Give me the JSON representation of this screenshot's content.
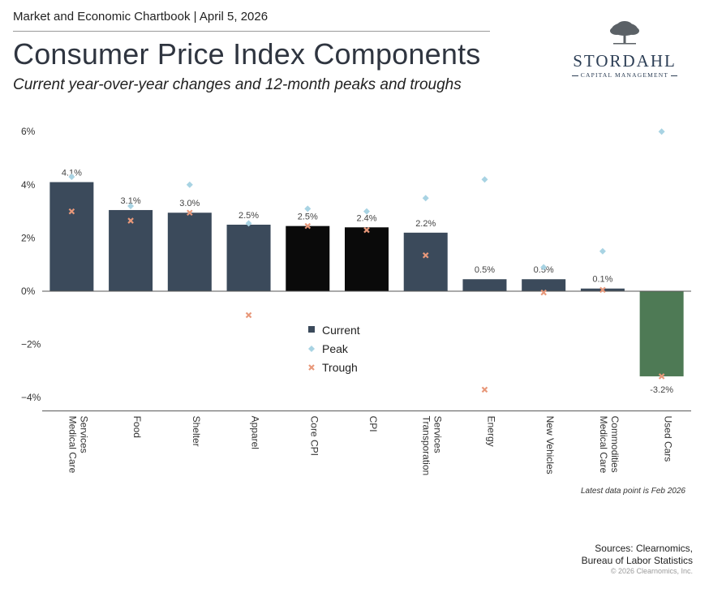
{
  "header": {
    "chartbook_line": "Market and Economic Chartbook | April 5, 2026",
    "title": "Consumer Price Index Components",
    "subtitle": "Current year-over-year changes and 12-month peaks and troughs"
  },
  "logo": {
    "name": "STORDAHL",
    "tagline": "CAPITAL MANAGEMENT",
    "icon": "tree-icon"
  },
  "colors": {
    "bar_default": "#3b4a5b",
    "bar_highlight": "#0a0a0a",
    "bar_negative": "#4e7a55",
    "peak": "#a8d3e3",
    "trough": "#e8987a",
    "axis": "#555555"
  },
  "chart_data": {
    "type": "bar",
    "title": "Consumer Price Index Components",
    "xlabel": "",
    "ylabel": "",
    "ylim": [
      -4.5,
      6.3
    ],
    "y_ticks": [
      6,
      4,
      2,
      0,
      -2,
      -4
    ],
    "y_tick_labels": [
      "6%",
      "4%",
      "2%",
      "0%",
      "−2%",
      "−4%"
    ],
    "grid": false,
    "legend_position": "center",
    "categories": [
      "Medical Care Services",
      "Food",
      "Shelter",
      "Apparel",
      "Core CPI",
      "CPI",
      "Transporation Services",
      "Energy",
      "New Vehicles",
      "Medical Care Commodities",
      "Used Cars"
    ],
    "category_lines": [
      [
        "Medical Care",
        "Services"
      ],
      [
        "Food"
      ],
      [
        "Shelter"
      ],
      [
        "Apparel"
      ],
      [
        "Core CPI"
      ],
      [
        "CPI"
      ],
      [
        "Transporation",
        "Services"
      ],
      [
        "Energy"
      ],
      [
        "New Vehicles"
      ],
      [
        "Medical Care",
        "Commodities"
      ],
      [
        "Used Cars"
      ]
    ],
    "series": [
      {
        "name": "Current",
        "values": [
          4.1,
          3.05,
          2.95,
          2.5,
          2.45,
          2.4,
          2.2,
          0.45,
          0.45,
          0.1,
          -3.2
        ],
        "labels": [
          "4.1%",
          "3.1%",
          "3.0%",
          "2.5%",
          "2.5%",
          "2.4%",
          "2.2%",
          "0.5%",
          "0.5%",
          "0.1%",
          "-3.2%"
        ],
        "highlight": [
          false,
          false,
          false,
          false,
          true,
          true,
          false,
          false,
          false,
          false,
          false
        ]
      },
      {
        "name": "Peak",
        "values": [
          4.3,
          3.2,
          4.0,
          2.55,
          3.1,
          3.0,
          3.5,
          4.2,
          0.9,
          1.5,
          6.0
        ]
      },
      {
        "name": "Trough",
        "values": [
          3.0,
          2.65,
          2.95,
          -0.9,
          2.45,
          2.3,
          1.35,
          -3.7,
          -0.05,
          0.05,
          -3.2
        ]
      }
    ]
  },
  "footnote": "Latest data point is Feb 2026",
  "sources": {
    "line1": "Sources: Clearnomics,",
    "line2": "Bureau of Labor Statistics"
  },
  "copyright": "© 2026 Clearnomics, Inc."
}
